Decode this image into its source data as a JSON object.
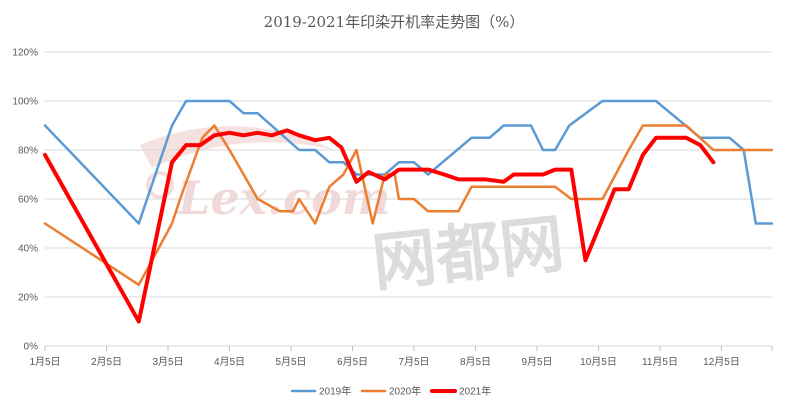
{
  "chart_data": {
    "type": "line",
    "title": "2019-2021年印染开机率走势图（%）",
    "categories": [
      "1月5日",
      "2月5日",
      "3月5日",
      "4月5日",
      "5月5日",
      "6月5日",
      "7月5日",
      "8月5日",
      "9月5日",
      "10月5日",
      "11月5日",
      "12月5日"
    ],
    "ylim": [
      0,
      120
    ],
    "yticks": [
      0,
      20,
      40,
      60,
      80,
      100,
      120
    ],
    "ytick_labels": [
      "0%",
      "20%",
      "40%",
      "60%",
      "80%",
      "100%",
      "120%"
    ],
    "grid": true,
    "legend": "bottom",
    "series": [
      {
        "name": "2019年",
        "color": "#5b9bd5",
        "points": [
          [
            "1月5日",
            90
          ],
          [
            "2月21日",
            50
          ],
          [
            "3月7日",
            90
          ],
          [
            "3月14日",
            100
          ],
          [
            "4月5日",
            100
          ],
          [
            "4月12日",
            95
          ],
          [
            "4月19日",
            95
          ],
          [
            "5月9日",
            80
          ],
          [
            "5月17日",
            80
          ],
          [
            "5月24日",
            75
          ],
          [
            "5月31日",
            75
          ],
          [
            "6月7日",
            70
          ],
          [
            "6月21日",
            70
          ],
          [
            "6月28日",
            75
          ],
          [
            "7月5日",
            75
          ],
          [
            "7月12日",
            70
          ],
          [
            "8月3日",
            85
          ],
          [
            "8月12日",
            85
          ],
          [
            "8月19日",
            90
          ],
          [
            "9月2日",
            90
          ],
          [
            "9月8日",
            80
          ],
          [
            "9月14日",
            80
          ],
          [
            "9月21日",
            90
          ],
          [
            "10月7日",
            100
          ],
          [
            "11月3日",
            100
          ],
          [
            "11月25日",
            85
          ],
          [
            "12月9日",
            85
          ],
          [
            "12月16日",
            80
          ],
          [
            "12月22日",
            50
          ],
          [
            "12月30日",
            50
          ]
        ]
      },
      {
        "name": "2020年",
        "color": "#ed7d31",
        "points": [
          [
            "1月5日",
            50
          ],
          [
            "2月21日",
            25
          ],
          [
            "3月7日",
            50
          ],
          [
            "3月11日",
            60
          ],
          [
            "3月22日",
            85
          ],
          [
            "3月28日",
            90
          ],
          [
            "4月5日",
            80
          ],
          [
            "4月19日",
            60
          ],
          [
            "4月30日",
            55
          ],
          [
            "5月6日",
            55
          ],
          [
            "5月9日",
            60
          ],
          [
            "5月17日",
            50
          ],
          [
            "5月24日",
            65
          ],
          [
            "5月31日",
            70
          ],
          [
            "6月7日",
            80
          ],
          [
            "6月15日",
            50
          ],
          [
            "6月21日",
            70
          ],
          [
            "6月26日",
            70
          ],
          [
            "6月28日",
            60
          ],
          [
            "7月5日",
            60
          ],
          [
            "7月12日",
            55
          ],
          [
            "7月27日",
            55
          ],
          [
            "8月3日",
            65
          ],
          [
            "9月14日",
            65
          ],
          [
            "9月22日",
            60
          ],
          [
            "10月7日",
            60
          ],
          [
            "10月20日",
            80
          ],
          [
            "10月27日",
            90
          ],
          [
            "11月18日",
            90
          ],
          [
            "12月1日",
            80
          ],
          [
            "12月30日",
            80
          ]
        ]
      },
      {
        "name": "2021年",
        "color": "#ff0000",
        "points": [
          [
            "1月5日",
            78
          ],
          [
            "2月21日",
            10
          ],
          [
            "3月7日",
            75
          ],
          [
            "3月14日",
            82
          ],
          [
            "3月21日",
            82
          ],
          [
            "3月28日",
            86
          ],
          [
            "4月5日",
            87
          ],
          [
            "4月12日",
            86
          ],
          [
            "4月19日",
            87
          ],
          [
            "4月26日",
            86
          ],
          [
            "5月3日",
            88
          ],
          [
            "5月9日",
            86
          ],
          [
            "5月17日",
            84
          ],
          [
            "5月24日",
            85
          ],
          [
            "5月30日",
            81
          ],
          [
            "6月7日",
            67
          ],
          [
            "6月13日",
            71
          ],
          [
            "6月21日",
            68
          ],
          [
            "6月28日",
            72
          ],
          [
            "7月5日",
            72
          ],
          [
            "7月12日",
            72
          ],
          [
            "7月20日",
            70
          ],
          [
            "7月27日",
            68
          ],
          [
            "8月10日",
            68
          ],
          [
            "8月19日",
            67
          ],
          [
            "8月24日",
            70
          ],
          [
            "9月8日",
            70
          ],
          [
            "9月14日",
            72
          ],
          [
            "9月22日",
            72
          ],
          [
            "9月29日",
            35
          ],
          [
            "10月13日",
            64
          ],
          [
            "10月20日",
            64
          ],
          [
            "10月27日",
            78
          ],
          [
            "11月3日",
            85
          ],
          [
            "11月18日",
            85
          ],
          [
            "11月25日",
            82
          ],
          [
            "12月1日",
            75
          ]
        ]
      }
    ]
  },
  "watermark": {
    "latin": "Lex.com",
    "cjk": "网都网"
  }
}
